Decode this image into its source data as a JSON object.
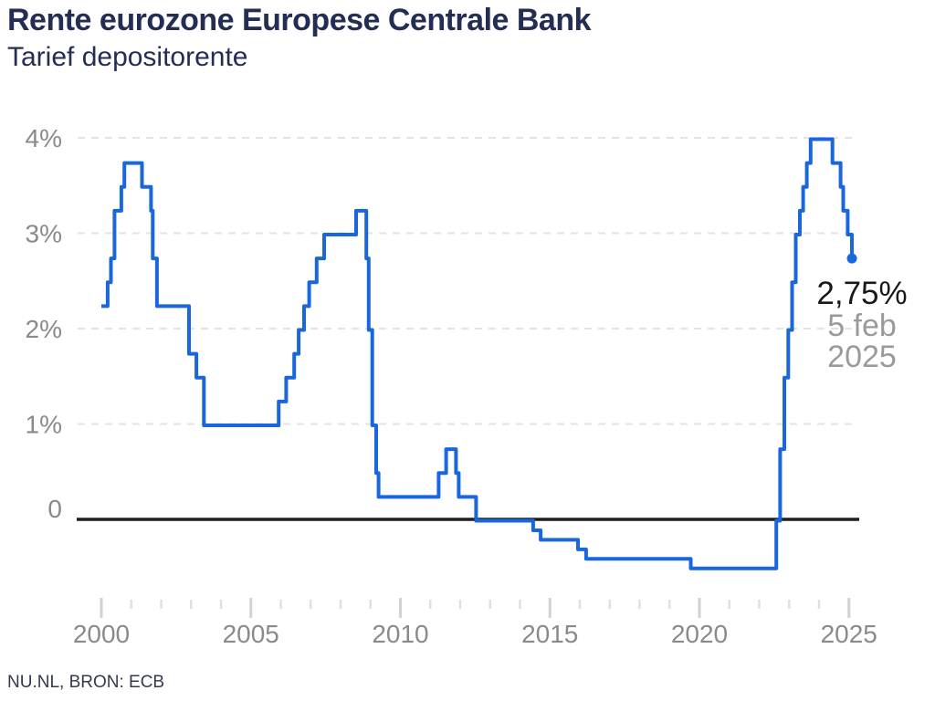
{
  "header": {
    "title": "Rente eurozone Europese Centrale Bank",
    "subtitle": "Tarief depositorente"
  },
  "annotation": {
    "value": "2,75%",
    "date_line1": "5 feb",
    "date_line2": "2025"
  },
  "footer": {
    "source": "NU.NL, BRON: ECB"
  },
  "colors": {
    "line": "#1a67dd",
    "endpoint_dot": "#1a67dd",
    "title_text": "#242e55",
    "axis_label": "#8a8a8a",
    "gridline": "#e3e3e3",
    "tick_major": "#d2d2d2",
    "tick_minor": "#e0e0e0",
    "zero_line": "#1f1f1f",
    "annotation_value": "#191919",
    "annotation_date": "#9a9a9a",
    "background": "#ffffff"
  },
  "chart_data": {
    "type": "line",
    "subtype": "step-after",
    "title": "Rente eurozone Europese Centrale Bank",
    "subtitle": "Tarief depositorente",
    "grid": "horizontal-dashed",
    "legend_position": "none",
    "x_axis": {
      "range": [
        2000,
        2025.4
      ],
      "major_tick_years": [
        2000,
        2005,
        2010,
        2015,
        2020,
        2025
      ],
      "minor_tick_step_years": 1,
      "tick_labels": [
        "2000",
        "2005",
        "2010",
        "2015",
        "2020",
        "2025"
      ]
    },
    "y_axis": {
      "range": [
        -0.6,
        4.2
      ],
      "unit": "%",
      "tick_values": [
        4,
        3,
        2,
        1,
        0
      ],
      "tick_labels": [
        "4%",
        "3%",
        "2%",
        "1%",
        "0"
      ],
      "gridline_values": [
        4,
        3,
        2,
        1
      ],
      "zero_baseline": true
    },
    "series": [
      {
        "name": "Tarief depositorente",
        "points": [
          [
            2000.0,
            2.25
          ],
          [
            2000.21,
            2.5
          ],
          [
            2000.32,
            2.75
          ],
          [
            2000.44,
            3.25
          ],
          [
            2000.67,
            3.5
          ],
          [
            2000.77,
            3.75
          ],
          [
            2001.36,
            3.5
          ],
          [
            2001.66,
            3.25
          ],
          [
            2001.72,
            2.75
          ],
          [
            2001.86,
            2.25
          ],
          [
            2002.93,
            1.75
          ],
          [
            2003.18,
            1.5
          ],
          [
            2003.43,
            1.0
          ],
          [
            2005.93,
            1.25
          ],
          [
            2006.18,
            1.5
          ],
          [
            2006.45,
            1.75
          ],
          [
            2006.6,
            2.0
          ],
          [
            2006.78,
            2.25
          ],
          [
            2006.95,
            2.5
          ],
          [
            2007.2,
            2.75
          ],
          [
            2007.45,
            3.0
          ],
          [
            2008.52,
            3.25
          ],
          [
            2008.86,
            2.75
          ],
          [
            2008.94,
            2.0
          ],
          [
            2009.06,
            1.0
          ],
          [
            2009.19,
            0.5
          ],
          [
            2009.27,
            0.25
          ],
          [
            2011.28,
            0.5
          ],
          [
            2011.53,
            0.75
          ],
          [
            2011.86,
            0.5
          ],
          [
            2011.95,
            0.25
          ],
          [
            2012.53,
            0.0
          ],
          [
            2014.44,
            -0.1
          ],
          [
            2014.69,
            -0.2
          ],
          [
            2015.94,
            -0.3
          ],
          [
            2016.21,
            -0.4
          ],
          [
            2019.71,
            -0.5
          ],
          [
            2022.57,
            0.0
          ],
          [
            2022.7,
            0.75
          ],
          [
            2022.84,
            1.5
          ],
          [
            2022.97,
            2.0
          ],
          [
            2023.1,
            2.5
          ],
          [
            2023.22,
            3.0
          ],
          [
            2023.36,
            3.25
          ],
          [
            2023.47,
            3.5
          ],
          [
            2023.59,
            3.75
          ],
          [
            2023.72,
            4.0
          ],
          [
            2024.45,
            3.75
          ],
          [
            2024.72,
            3.5
          ],
          [
            2024.81,
            3.25
          ],
          [
            2024.96,
            3.0
          ],
          [
            2025.1,
            2.75
          ]
        ]
      }
    ],
    "end_marker": {
      "x": 2025.1,
      "y": 2.75,
      "label": "2,75%",
      "date": "5 feb 2025"
    }
  }
}
